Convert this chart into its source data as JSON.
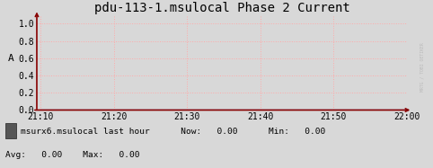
{
  "title": "pdu-113-1.msulocal Phase 2 Current",
  "ylabel": "A",
  "bg_color": "#d8d8d8",
  "plot_bg_color": "#d8d8d8",
  "grid_color": "#ffaaaa",
  "axis_color": "#880000",
  "ylim": [
    0.0,
    1.1
  ],
  "yticks": [
    0.0,
    0.2,
    0.4,
    0.6,
    0.8,
    1.0
  ],
  "xtick_labels": [
    "21:10",
    "21:20",
    "21:30",
    "21:40",
    "21:50",
    "22:00"
  ],
  "legend_label": "msurx6.msulocal last hour",
  "legend_color": "#555555",
  "now_val": "0.00",
  "min_val": "0.00",
  "avg_val": "0.00",
  "max_val": "0.00",
  "title_fontsize": 10,
  "tick_fontsize": 7,
  "label_fontsize": 8,
  "right_label": "MRTG / TOBI OETIKER",
  "font_family": "monospace"
}
